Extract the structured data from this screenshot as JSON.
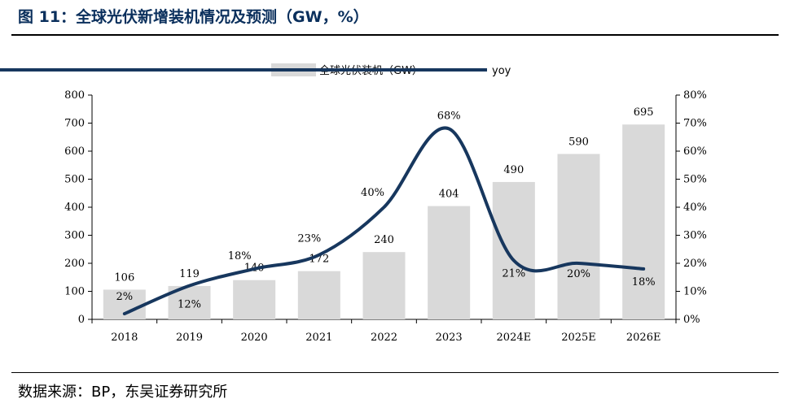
{
  "header": {
    "title": "图 11：全球光伏新增装机情况及预测（GW，%）"
  },
  "footer": {
    "source": "数据来源：BP，东吴证券研究所"
  },
  "colors": {
    "bar": "#d9d9d9",
    "line": "#17375e"
  },
  "chart_data": {
    "type": "bar+line",
    "categories": [
      "2018",
      "2019",
      "2020",
      "2021",
      "2022",
      "2023",
      "2024E",
      "2025E",
      "2026E"
    ],
    "series": [
      {
        "name": "全球光伏装机（GW）",
        "type": "bar",
        "axis": "left",
        "values": [
          106,
          119,
          140,
          172,
          240,
          404,
          490,
          590,
          695
        ],
        "labels": [
          "106",
          "119",
          "140",
          "172",
          "240",
          "404",
          "490",
          "590",
          "695"
        ]
      },
      {
        "name": "yoy",
        "type": "line",
        "axis": "right",
        "values": [
          2,
          12,
          18,
          23,
          40,
          68,
          21,
          20,
          18
        ],
        "labels": [
          "2%",
          "12%",
          "18%",
          "23%",
          "40%",
          "68%",
          "21%",
          "20%",
          "18%"
        ]
      }
    ],
    "y_left": {
      "min": 0,
      "max": 800,
      "ticks": [
        "0",
        "100",
        "200",
        "300",
        "400",
        "500",
        "600",
        "700",
        "800"
      ]
    },
    "y_right": {
      "min": 0,
      "max": 80,
      "ticks": [
        "0%",
        "10%",
        "20%",
        "30%",
        "40%",
        "50%",
        "60%",
        "70%",
        "80%"
      ]
    },
    "legend": [
      "全球光伏装机（GW）",
      "yoy"
    ],
    "legend_position": "top-center"
  }
}
